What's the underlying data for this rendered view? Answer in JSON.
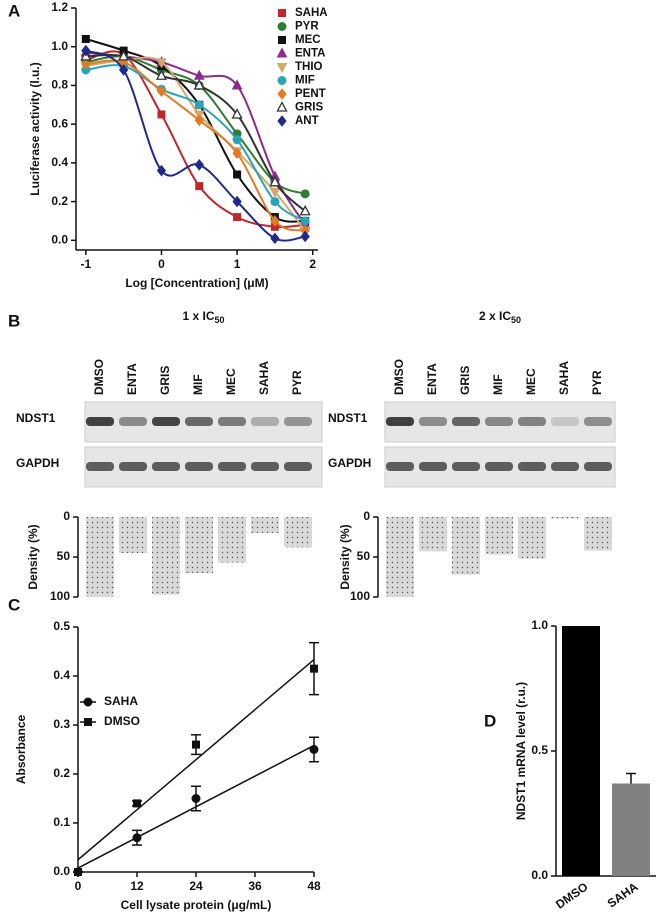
{
  "chart_data": [
    {
      "type": "line",
      "label": "A",
      "xlabel": "Log [Concentration] (μM)",
      "ylabel": "Luciferase activity (l.u.)",
      "x": [
        -1,
        -0.5,
        0,
        0.5,
        1,
        1.5,
        1.9
      ],
      "xlim": [
        -1.13,
        2.07
      ],
      "xticks": [
        -1,
        0,
        1,
        2
      ],
      "ylim": [
        -0.05,
        1.2
      ],
      "yticks": [
        {
          "value": 0,
          "label": "0.0"
        },
        0.2,
        0.4,
        0.6,
        0.8,
        {
          "value": 1,
          "label": "1.0"
        },
        1.2
      ],
      "legend": "upper right",
      "series": [
        {
          "name": "SAHA",
          "color": "#c0272d",
          "marker": "square",
          "values": [
            0.93,
            0.96,
            0.65,
            0.28,
            0.12,
            0.07,
            0.08
          ]
        },
        {
          "name": "PYR",
          "color": "#2e7d32",
          "marker": "circle",
          "values": [
            0.92,
            0.95,
            0.88,
            0.8,
            0.55,
            0.3,
            0.24
          ]
        },
        {
          "name": "MEC",
          "color": "#111111",
          "marker": "square",
          "values": [
            1.04,
            0.98,
            0.9,
            0.7,
            0.34,
            0.12,
            0.1
          ]
        },
        {
          "name": "ENTA",
          "color": "#8b2b8b",
          "marker": "triangle",
          "values": [
            0.97,
            0.95,
            0.92,
            0.85,
            0.8,
            0.33,
            0.08
          ]
        },
        {
          "name": "THIO",
          "color": "#d4a86a",
          "marker": "triangle-down",
          "values": [
            0.9,
            0.93,
            0.92,
            0.65,
            0.46,
            0.25,
            0.05
          ]
        },
        {
          "name": "MIF",
          "color": "#2aa5b8",
          "marker": "circle",
          "values": [
            0.88,
            0.9,
            0.78,
            0.7,
            0.52,
            0.2,
            0.1
          ]
        },
        {
          "name": "PENT",
          "color": "#e07b24",
          "marker": "diamond",
          "values": [
            0.91,
            0.92,
            0.77,
            0.62,
            0.45,
            0.1,
            0.05
          ]
        },
        {
          "name": "GRIS",
          "color": "#333333",
          "marker": "triangle-open",
          "values": [
            0.95,
            0.95,
            0.85,
            0.8,
            0.65,
            0.3,
            0.15
          ]
        },
        {
          "name": "ANT",
          "color": "#1f2a8a",
          "marker": "diamond",
          "values": [
            0.98,
            0.88,
            0.36,
            0.39,
            0.2,
            0.01,
            0.02
          ]
        }
      ]
    },
    {
      "type": "bar",
      "label": "B",
      "title": "1 x IC",
      "title_subscript": "50",
      "categories": [
        "DMSO",
        "ENTA",
        "GRIS",
        "MIF",
        "MEC",
        "SAHA",
        "PYR"
      ],
      "blot_rows": [
        "NDST1",
        "GAPDH"
      ],
      "ylabel": "Density (%)",
      "values": [
        100,
        45,
        97,
        70,
        57,
        20,
        38
      ],
      "ylim": [
        0,
        100
      ],
      "yticks": [
        0,
        50,
        100
      ],
      "y_inverted": true,
      "color": "#d9d9d9"
    },
    {
      "type": "bar",
      "title": "2 x IC",
      "title_subscript": "50",
      "categories": [
        "DMSO",
        "ENTA",
        "GRIS",
        "MIF",
        "MEC",
        "SAHA",
        "PYR"
      ],
      "blot_rows": [
        "NDST1",
        "GAPDH"
      ],
      "ylabel": "Density (%)",
      "values": [
        100,
        43,
        72,
        47,
        52,
        2,
        42
      ],
      "ylim": [
        0,
        100
      ],
      "yticks": [
        0,
        50,
        100
      ],
      "y_inverted": true,
      "color": "#d9d9d9"
    },
    {
      "type": "scatter",
      "label": "C",
      "xlabel": "Cell lysate protein (μg/mL)",
      "ylabel": "Absorbance",
      "xlim": [
        0,
        48
      ],
      "xticks": [
        0,
        12,
        24,
        36,
        48
      ],
      "ylim": [
        0,
        0.5
      ],
      "yticks": [
        {
          "value": 0,
          "label": "0.0"
        },
        0.1,
        0.2,
        0.3,
        0.4,
        0.5
      ],
      "legend": "upper left",
      "fit": "linear",
      "series": [
        {
          "name": "SAHA",
          "color": "#111111",
          "marker": "circle",
          "x": [
            0,
            12,
            24,
            48
          ],
          "values": [
            0,
            0.07,
            0.15,
            0.25
          ],
          "errors": [
            0,
            0.015,
            0.025,
            0.025
          ]
        },
        {
          "name": "DMSO",
          "color": "#111111",
          "marker": "square",
          "x": [
            0,
            12,
            24,
            48
          ],
          "values": [
            0,
            0.14,
            0.26,
            0.415
          ],
          "errors": [
            0,
            0.005,
            0.02,
            0.053
          ]
        }
      ]
    },
    {
      "type": "bar",
      "label": "D",
      "ylabel": "NDST1 mRNA level (r.u.)",
      "categories": [
        "DMSO",
        "SAHA"
      ],
      "values": [
        1.0,
        0.37
      ],
      "errors": [
        0,
        0.04
      ],
      "colors": [
        "#000000",
        "#808080"
      ],
      "ylim": [
        0,
        1.0
      ],
      "yticks": [
        {
          "value": 0,
          "label": "0.0"
        },
        {
          "value": 0.5,
          "label": "0.5"
        },
        {
          "value": 1,
          "label": "1.0"
        }
      ]
    }
  ]
}
